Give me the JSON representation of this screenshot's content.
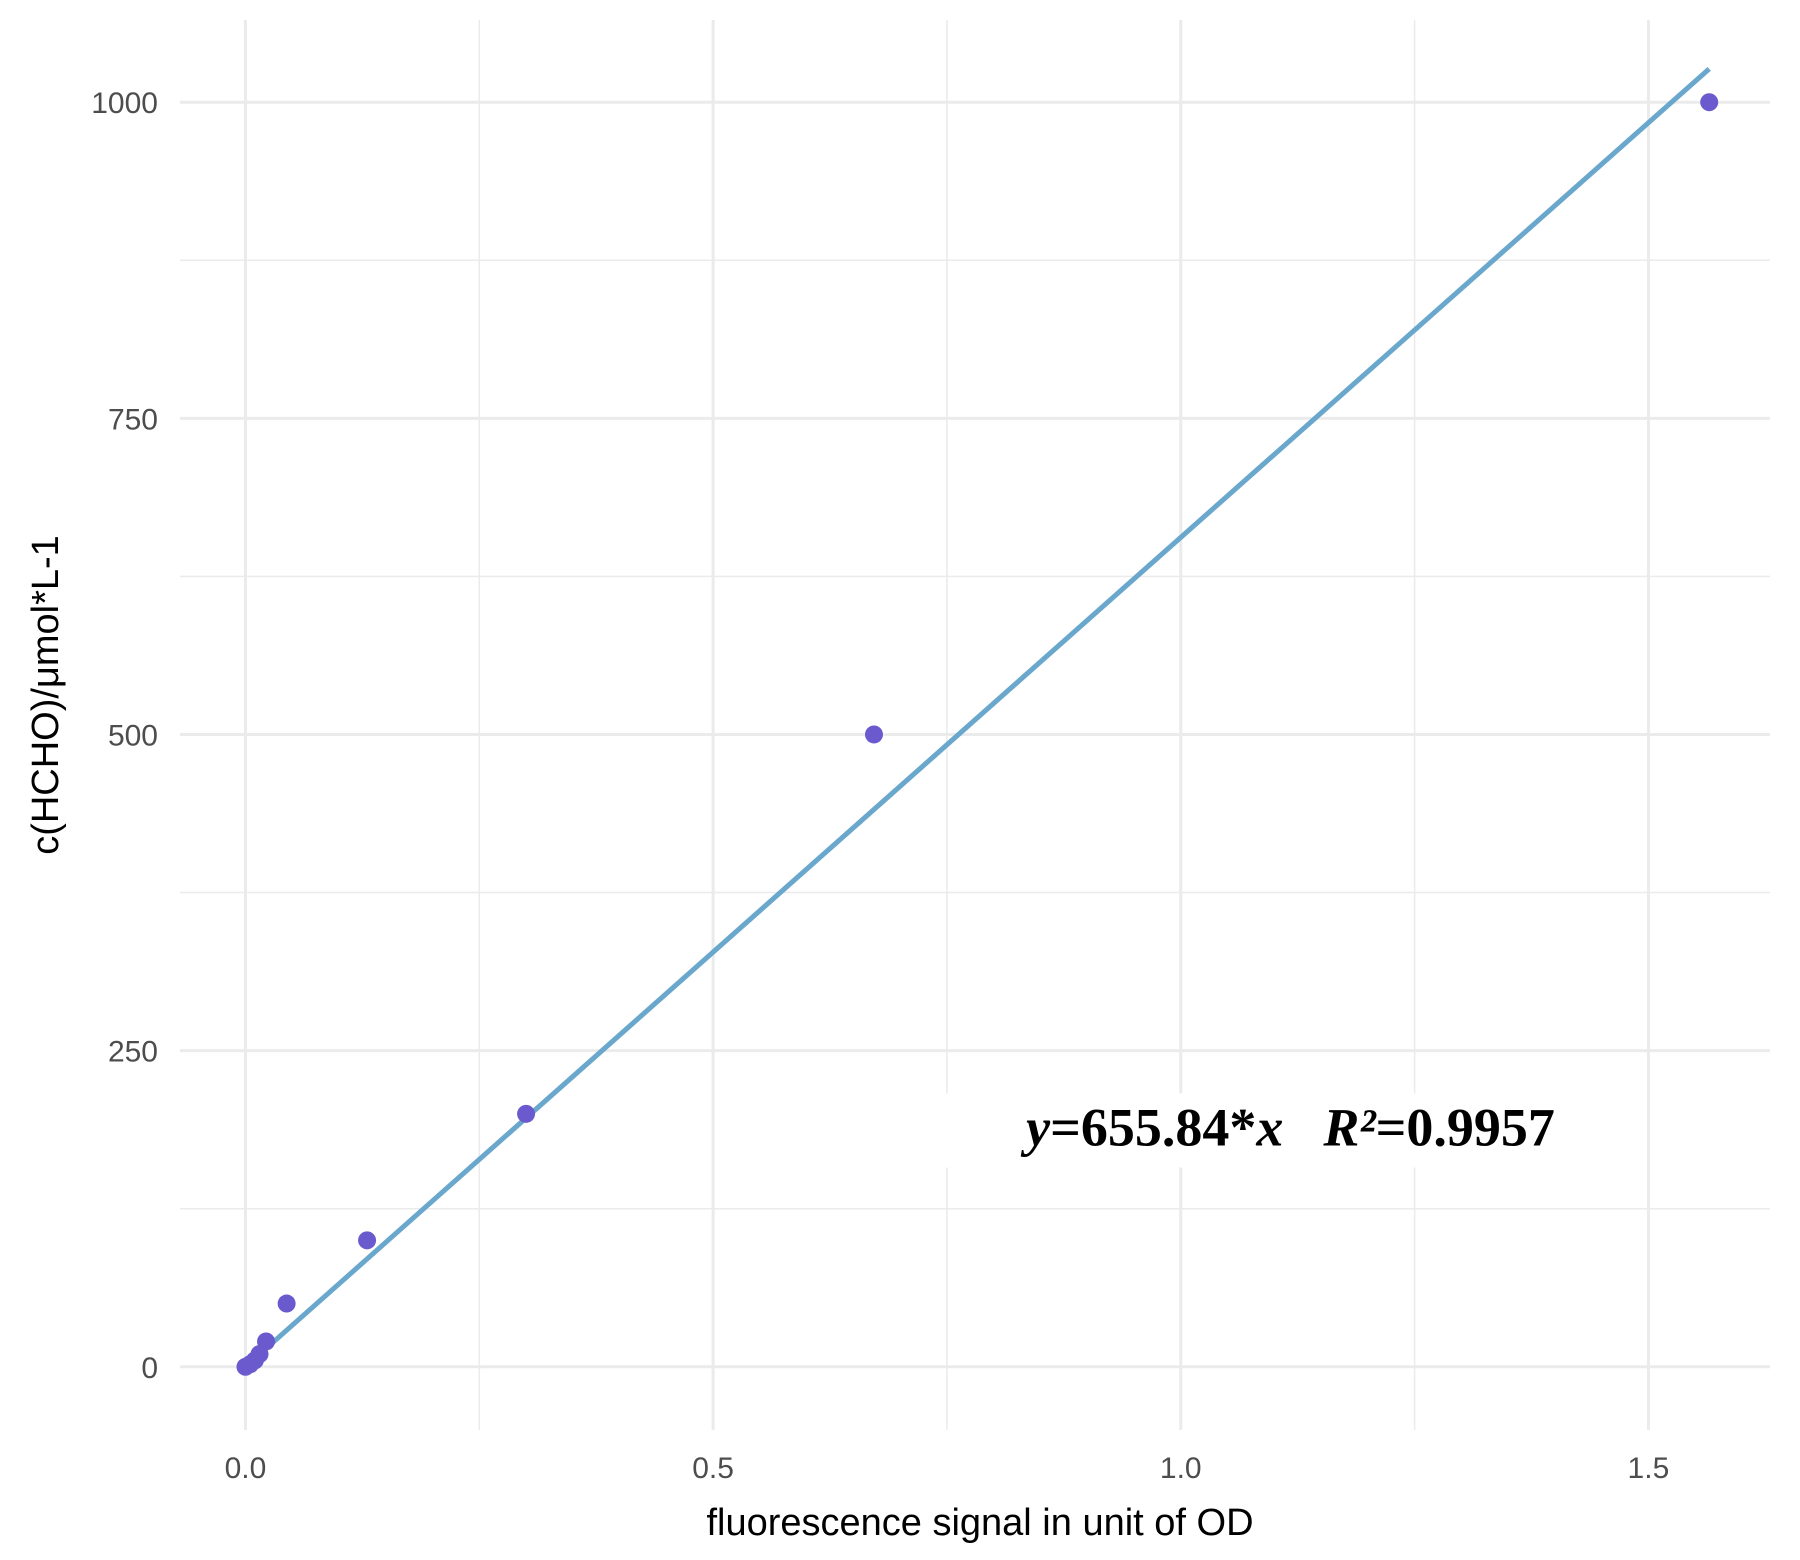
{
  "chart_data": {
    "type": "scatter",
    "title": "",
    "xlabel": "fluorescence signal in unit of OD",
    "ylabel": "c(HCHO)/μmol*L-1",
    "xlim": [
      -0.07,
      1.63
    ],
    "ylim": [
      -50,
      1065
    ],
    "x_ticks": [
      0.0,
      0.5,
      1.0,
      1.5
    ],
    "x_tick_labels": [
      "0.0",
      "0.5",
      "1.0",
      "1.5"
    ],
    "y_ticks": [
      0,
      250,
      500,
      750,
      1000
    ],
    "y_tick_labels": [
      "0",
      "250",
      "500",
      "750",
      "1000"
    ],
    "grid": true,
    "points": {
      "x": [
        0.0,
        0.005,
        0.01,
        0.015,
        0.022,
        0.044,
        0.13,
        0.3,
        0.672,
        1.565
      ],
      "y": [
        0,
        2,
        5,
        10,
        20,
        50,
        100,
        200,
        500,
        1000
      ]
    },
    "fit_line": {
      "slope": 655.84,
      "x_range": [
        0.0,
        1.565
      ]
    },
    "annotation": {
      "y_var": "y",
      "eq_text": "=655.84*",
      "x_var": "x",
      "r_var": "R²",
      "r_text": "=0.9957",
      "x": 1.4,
      "y": 175
    },
    "colors": {
      "points": "#6a5acd",
      "fit_line": "#6aa7cc",
      "grid": "#ebebeb",
      "background": "#ffffff"
    }
  }
}
